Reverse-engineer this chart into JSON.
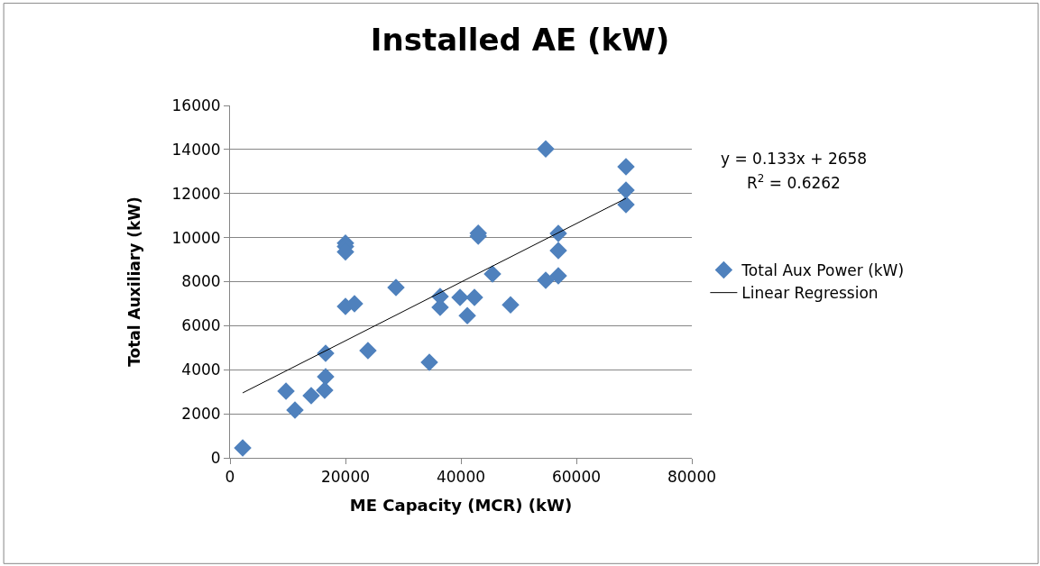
{
  "chart_data": {
    "type": "scatter",
    "title": "Installed AE (kW)",
    "xlabel": "ME Capacity (MCR) (kW)",
    "ylabel": "Total Auxiliary (kW)",
    "series": [
      {
        "name": "Total Aux Power (kW)",
        "color": "#4f81bd",
        "marker": "diamond",
        "x": [
          2200,
          9700,
          11250,
          14060,
          16400,
          16560,
          16560,
          20000,
          20000,
          20000,
          20000,
          21560,
          23900,
          28750,
          34530,
          36400,
          36400,
          39840,
          41100,
          42340,
          43000,
          43000,
          45470,
          48590,
          54690,
          54690,
          56870,
          56870,
          56870,
          68590,
          68590,
          68590
        ],
        "values": [
          450,
          3030,
          2170,
          2820,
          3070,
          3680,
          4750,
          9750,
          9600,
          9350,
          6870,
          7000,
          4870,
          7730,
          4340,
          7320,
          6830,
          7280,
          6460,
          7280,
          10200,
          10070,
          8350,
          6950,
          14030,
          8060,
          8270,
          10190,
          9410,
          13220,
          12150,
          11500
        ]
      },
      {
        "name": "Linear Regression",
        "color": "#000000",
        "type": "line",
        "marker": "none",
        "x": [
          2200,
          68590
        ],
        "values": [
          2950,
          11780
        ]
      }
    ],
    "annotations": [
      "y = 0.133x + 2658",
      "R$^{2}$ = 0.6262"
    ],
    "xlim": [
      0,
      80000
    ],
    "xticks": [
      0,
      20000,
      40000,
      60000,
      80000
    ],
    "ylim": [
      0,
      16000
    ],
    "yticks": [
      0,
      2000,
      4000,
      6000,
      8000,
      10000,
      12000,
      14000,
      16000
    ],
    "grid": "y",
    "legend": "right"
  }
}
